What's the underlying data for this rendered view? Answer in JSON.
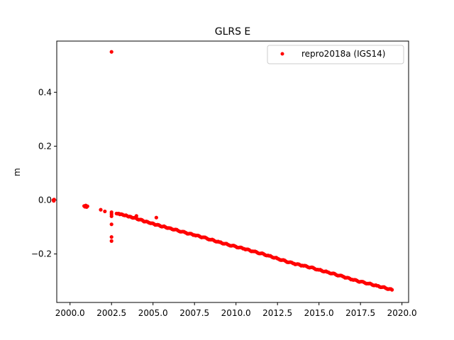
{
  "chart_data": {
    "type": "scatter",
    "title": "GLRS E",
    "xlabel": "",
    "ylabel": "m",
    "xlim": [
      1999.2,
      2020.4
    ],
    "ylim": [
      -0.38,
      0.59
    ],
    "xticks": [
      2000.0,
      2002.5,
      2005.0,
      2007.5,
      2010.0,
      2012.5,
      2015.0,
      2017.5,
      2020.0
    ],
    "xtick_labels": [
      "2000.0",
      "2002.5",
      "2005.0",
      "2007.5",
      "2010.0",
      "2012.5",
      "2015.0",
      "2017.5",
      "2020.0"
    ],
    "yticks": [
      -0.2,
      0.0,
      0.2,
      0.4
    ],
    "ytick_labels": [
      "−0.2",
      "0.0",
      "0.2",
      "0.4"
    ],
    "grid": false,
    "legend_position": "upper right",
    "colors": {
      "series": "#ff0000",
      "axes": "#000000",
      "background": "#ffffff"
    },
    "series": [
      {
        "name": "repro2018a (IGS14)",
        "marker": "dot",
        "points": [
          [
            1999.0,
            0.0
          ],
          [
            1999.02,
            -0.003
          ],
          [
            1999.04,
            0.002
          ],
          [
            2000.85,
            -0.022
          ],
          [
            2000.9,
            -0.025
          ],
          [
            2000.95,
            -0.02
          ],
          [
            2001.0,
            -0.026
          ],
          [
            2001.05,
            -0.023
          ],
          [
            2001.85,
            -0.036
          ],
          [
            2002.1,
            -0.042
          ],
          [
            2002.5,
            0.55
          ],
          [
            2002.5,
            -0.045
          ],
          [
            2002.5,
            -0.052
          ],
          [
            2002.5,
            -0.06
          ],
          [
            2002.5,
            -0.09
          ],
          [
            2002.5,
            -0.137
          ],
          [
            2002.5,
            -0.152
          ],
          [
            2005.2,
            -0.065
          ],
          [
            2002.8,
            -0.05
          ],
          [
            2003.0,
            -0.053
          ],
          [
            2003.3,
            -0.057
          ],
          [
            2003.6,
            -0.061
          ],
          [
            2004.0,
            -0.068
          ],
          [
            2004.4,
            -0.077
          ],
          [
            2004.8,
            -0.085
          ],
          [
            2005.2,
            -0.092
          ],
          [
            2005.6,
            -0.098
          ],
          [
            2006.0,
            -0.104
          ],
          [
            2006.5,
            -0.113
          ],
          [
            2007.0,
            -0.122
          ],
          [
            2007.5,
            -0.13
          ],
          [
            2008.0,
            -0.138
          ],
          [
            2008.5,
            -0.147
          ],
          [
            2009.0,
            -0.156
          ],
          [
            2009.5,
            -0.165
          ],
          [
            2010.0,
            -0.173
          ],
          [
            2010.5,
            -0.181
          ],
          [
            2011.0,
            -0.19
          ],
          [
            2011.5,
            -0.198
          ],
          [
            2012.0,
            -0.207
          ],
          [
            2012.5,
            -0.217
          ],
          [
            2013.0,
            -0.227
          ],
          [
            2013.5,
            -0.236
          ],
          [
            2014.0,
            -0.243
          ],
          [
            2014.5,
            -0.25
          ],
          [
            2015.0,
            -0.259
          ],
          [
            2015.5,
            -0.267
          ],
          [
            2016.0,
            -0.276
          ],
          [
            2016.5,
            -0.285
          ],
          [
            2017.0,
            -0.295
          ],
          [
            2017.5,
            -0.303
          ],
          [
            2018.0,
            -0.31
          ],
          [
            2018.5,
            -0.318
          ],
          [
            2019.0,
            -0.326
          ],
          [
            2019.4,
            -0.333
          ]
        ]
      }
    ]
  }
}
